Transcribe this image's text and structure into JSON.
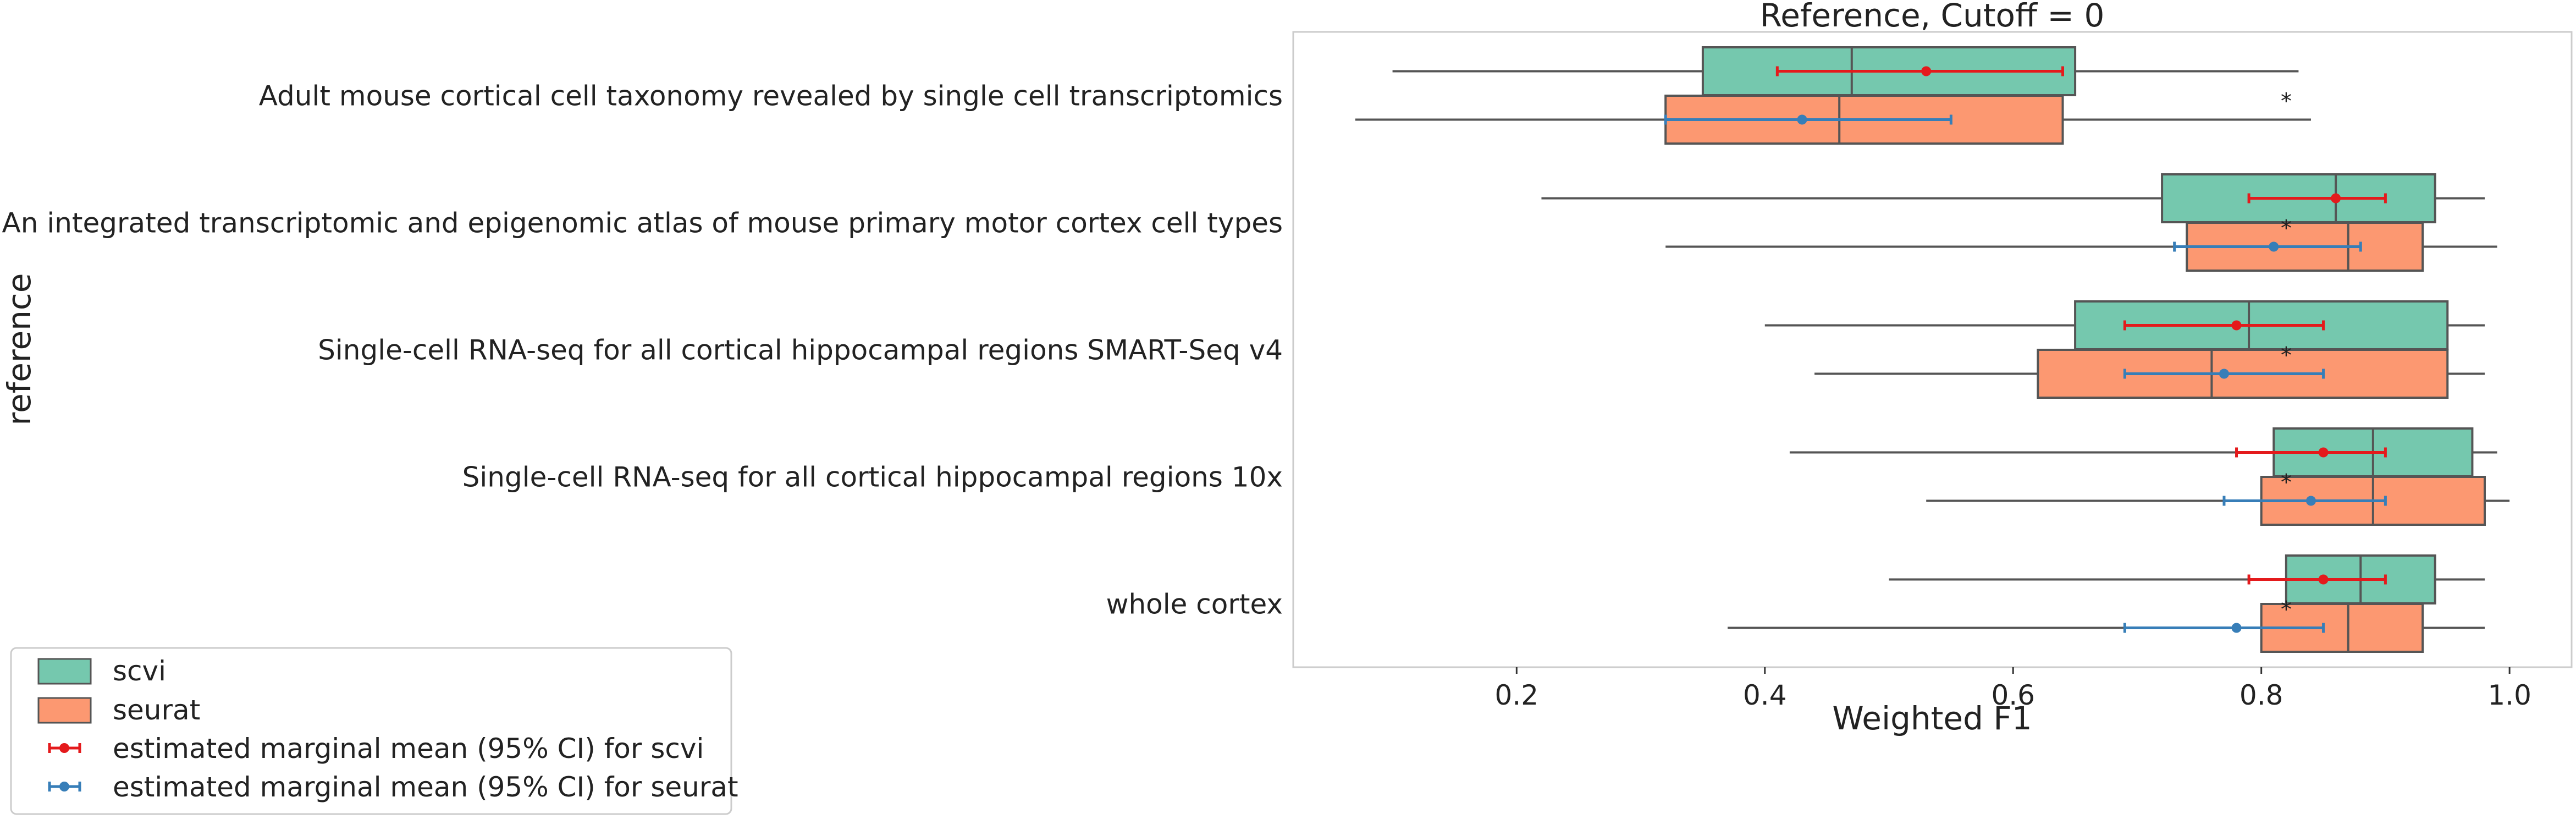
{
  "chart_data": {
    "type": "box",
    "orientation": "horizontal",
    "title": "Reference, Cutoff = 0",
    "xlabel": "Weighted F1",
    "ylabel": "reference",
    "xlim": [
      0.02,
      1.05
    ],
    "xticks": [
      0.2,
      0.4,
      0.6,
      0.8,
      1.0
    ],
    "xtick_labels": [
      "0.2",
      "0.4",
      "0.6",
      "0.8",
      "1.0"
    ],
    "grid": false,
    "legend_position": "bottom-left",
    "categories": [
      "Adult mouse cortical cell taxonomy revealed by single cell transcriptomics",
      "An integrated transcriptomic and epigenomic atlas of mouse primary motor cortex cell types",
      "Single-cell RNA-seq for all cortical  hippocampal regions SMART-Seq v4",
      "Single-cell RNA-seq for all cortical  hippocampal regions 10x",
      "whole cortex"
    ],
    "series": [
      {
        "name": "scvi",
        "color": "#66c2a5",
        "boxes": [
          {
            "whislo": 0.1,
            "q1": 0.35,
            "med": 0.47,
            "q3": 0.65,
            "whishi": 0.83
          },
          {
            "whislo": 0.22,
            "q1": 0.72,
            "med": 0.86,
            "q3": 0.94,
            "whishi": 0.98
          },
          {
            "whislo": 0.4,
            "q1": 0.65,
            "med": 0.79,
            "q3": 0.95,
            "whishi": 0.98
          },
          {
            "whislo": 0.42,
            "q1": 0.81,
            "med": 0.89,
            "q3": 0.97,
            "whishi": 0.99
          },
          {
            "whislo": 0.5,
            "q1": 0.82,
            "med": 0.88,
            "q3": 0.94,
            "whishi": 0.98
          }
        ]
      },
      {
        "name": "seurat",
        "color": "#fc8d62",
        "boxes": [
          {
            "whislo": 0.07,
            "q1": 0.32,
            "med": 0.46,
            "q3": 0.64,
            "whishi": 0.84
          },
          {
            "whislo": 0.32,
            "q1": 0.74,
            "med": 0.87,
            "q3": 0.93,
            "whishi": 0.99
          },
          {
            "whislo": 0.44,
            "q1": 0.62,
            "med": 0.76,
            "q3": 0.95,
            "whishi": 0.98
          },
          {
            "whislo": 0.53,
            "q1": 0.8,
            "med": 0.89,
            "q3": 0.98,
            "whishi": 1.0
          },
          {
            "whislo": 0.37,
            "q1": 0.8,
            "med": 0.87,
            "q3": 0.93,
            "whishi": 0.98
          }
        ]
      }
    ],
    "marginal_means": [
      {
        "name": "estimated marginal mean (95% CI) for scvi",
        "color": "#e41a1c",
        "values": [
          {
            "mean": 0.53,
            "lo": 0.41,
            "hi": 0.64
          },
          {
            "mean": 0.86,
            "lo": 0.79,
            "hi": 0.9
          },
          {
            "mean": 0.78,
            "lo": 0.69,
            "hi": 0.85
          },
          {
            "mean": 0.85,
            "lo": 0.78,
            "hi": 0.9
          },
          {
            "mean": 0.85,
            "lo": 0.79,
            "hi": 0.9
          }
        ]
      },
      {
        "name": "estimated marginal mean (95% CI) for seurat",
        "color": "#377eb8",
        "values": [
          {
            "mean": 0.43,
            "lo": 0.32,
            "hi": 0.55
          },
          {
            "mean": 0.81,
            "lo": 0.73,
            "hi": 0.88
          },
          {
            "mean": 0.77,
            "lo": 0.69,
            "hi": 0.85
          },
          {
            "mean": 0.84,
            "lo": 0.77,
            "hi": 0.9
          },
          {
            "mean": 0.78,
            "lo": 0.69,
            "hi": 0.85
          }
        ]
      }
    ],
    "annotations": [
      {
        "text": "*",
        "x": 0.82,
        "color": "#e41a1c"
      },
      {
        "text": "*",
        "x": 0.82,
        "color": "#e41a1c"
      },
      {
        "text": "*",
        "x": 0.82,
        "color": "#222222"
      },
      {
        "text": "*",
        "x": 0.82,
        "color": "#222222"
      },
      {
        "text": "*",
        "x": 0.82,
        "color": "#e41a1c"
      }
    ]
  }
}
